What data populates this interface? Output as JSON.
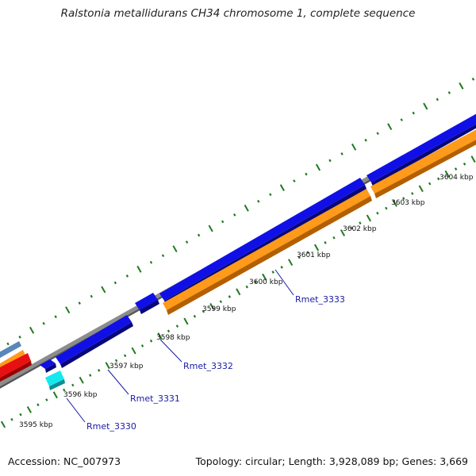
{
  "title": "Ralstonia metallidurans CH34 chromosome 1, complete sequence",
  "footer": {
    "accession": "Accession: NC_007973",
    "summary": "Topology: circular; Length: 3,928,089 bp; Genes: 3,669"
  },
  "tick_labels": [
    "3595 kbp",
    "3596 kbp",
    "3597 kbp",
    "3598 kbp",
    "3599 kbp",
    "3600 kbp",
    "3601 kbp",
    "3602 kbp",
    "3603 kbp",
    "3604 kbp"
  ],
  "gene_labels": [
    "Rmet_3330",
    "Rmet_3331",
    "Rmet_3332",
    "Rmet_3333"
  ],
  "colors": {
    "backbone": "#8c8c8c",
    "forward_cds": "#1010e6",
    "reverse_cds": "#ff9a1a",
    "small_cds": "#16e8ee",
    "red_feature": "#e81010",
    "steel_feature": "#5a86b8",
    "ticks": "#1f7a1f",
    "label_line": "#1a1aa6"
  }
}
